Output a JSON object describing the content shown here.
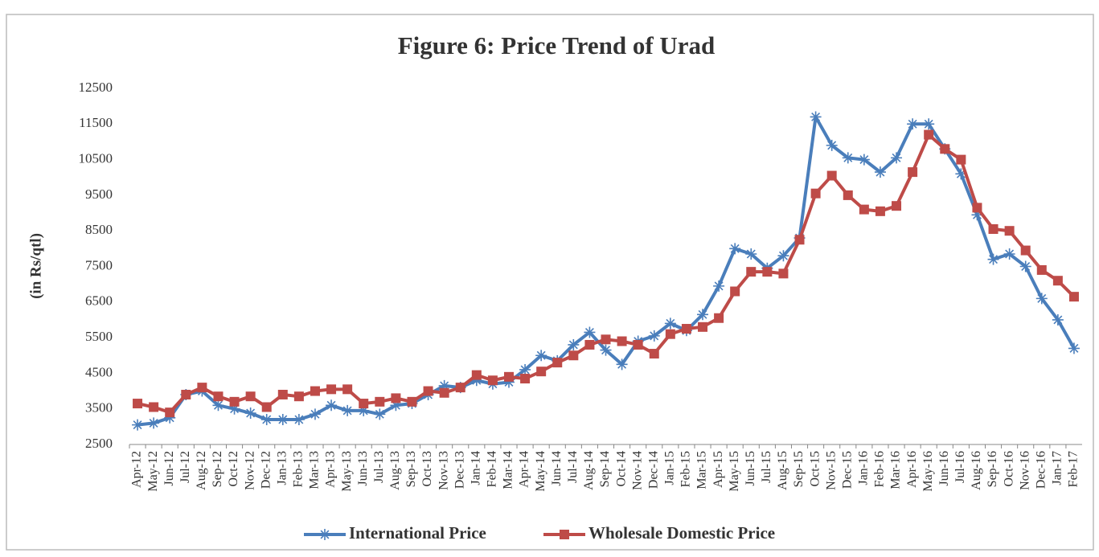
{
  "chart_data": {
    "type": "line",
    "title": "Figure 6: Price Trend of Urad",
    "y_label": "(in Rs/qtl)",
    "categories": [
      "Apr-12",
      "May-12",
      "Jun-12",
      "Jul-12",
      "Aug-12",
      "Sep-12",
      "Oct-12",
      "Nov-12",
      "Dec-12",
      "Jan-13",
      "Feb-13",
      "Mar-13",
      "Apr-13",
      "May-13",
      "Jun-13",
      "Jul-13",
      "Aug-13",
      "Sep-13",
      "Oct-13",
      "Nov-13",
      "Dec-13",
      "Jan-14",
      "Feb-14",
      "Mar-14",
      "Apr-14",
      "May-14",
      "Jun-14",
      "Jul-14",
      "Aug-14",
      "Sep-14",
      "Oct-14",
      "Nov-14",
      "Dec-14",
      "Jan-15",
      "Feb-15",
      "Mar-15",
      "Apr-15",
      "May-15",
      "Jun-15",
      "Jul-15",
      "Aug-15",
      "Sep-15",
      "Oct-15",
      "Nov-15",
      "Dec-15",
      "Jan-16",
      "Feb-16",
      "Mar-16",
      "Apr-16",
      "May-16",
      "Jun-16",
      "Jul-16",
      "Aug-16",
      "Sep-16",
      "Oct-16",
      "Nov-16",
      "Dec-16",
      "Jan-17",
      "Feb-17"
    ],
    "series": [
      {
        "name": "International Price",
        "color": "#4a7ebb",
        "marker": "star",
        "values": [
          3050,
          3100,
          3250,
          3900,
          4000,
          3600,
          3500,
          3380,
          3200,
          3200,
          3200,
          3350,
          3600,
          3450,
          3450,
          3350,
          3600,
          3650,
          3900,
          4150,
          4100,
          4300,
          4200,
          4250,
          4600,
          5000,
          4850,
          5300,
          5650,
          5150,
          4750,
          5400,
          5550,
          5900,
          5700,
          6150,
          6950,
          8000,
          7850,
          7450,
          7800,
          8300,
          11700,
          10900,
          10550,
          10500,
          10150,
          10550,
          11500,
          11500,
          10800,
          10100,
          8950,
          7700,
          7850,
          7500,
          6600,
          6000,
          5200
        ]
      },
      {
        "name": "Wholesale Domestic Price",
        "color": "#be4b48",
        "marker": "square",
        "values": [
          3650,
          3550,
          3400,
          3900,
          4100,
          3850,
          3700,
          3850,
          3550,
          3900,
          3850,
          4000,
          4050,
          4050,
          3650,
          3700,
          3800,
          3700,
          4000,
          3950,
          4100,
          4450,
          4300,
          4400,
          4350,
          4550,
          4800,
          5000,
          5300,
          5450,
          5400,
          5300,
          5050,
          5600,
          5750,
          5800,
          6050,
          6800,
          7350,
          7350,
          7300,
          8250,
          9550,
          10050,
          9500,
          9100,
          9050,
          9200,
          10150,
          11200,
          10800,
          10500,
          9150,
          8550,
          8500,
          7950,
          7400,
          7100,
          6650
        ]
      }
    ],
    "ylim": [
      2500,
      12500
    ],
    "yticks": [
      2500,
      3500,
      4500,
      5500,
      6500,
      7500,
      8500,
      9500,
      10500,
      11500,
      12500
    ],
    "grid": false,
    "legend": "bottom"
  }
}
